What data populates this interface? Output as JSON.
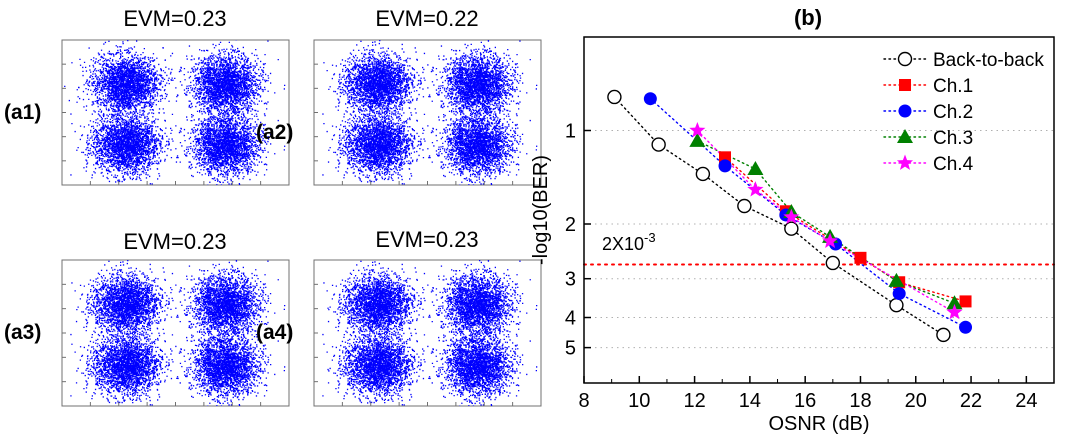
{
  "constellations": [
    {
      "panel_label": "(a1)",
      "title": "EVM=0.23"
    },
    {
      "panel_label": "(a2)",
      "title": "EVM=0.22"
    },
    {
      "panel_label": "(a3)",
      "title": "EVM=0.23"
    },
    {
      "panel_label": "(a4)",
      "title": "EVM=0.23"
    }
  ],
  "colors": {
    "constellation_points": "#0000ff",
    "back_to_back": "#000000",
    "ch1": "#ff0000",
    "ch2": "#0000ff",
    "ch3": "#008000",
    "ch4": "#ff00ff",
    "threshold_line": "#ff0000",
    "grid": "#b0b0b0"
  },
  "chart_data": {
    "type": "scatter",
    "panel_label": "(b)",
    "xlabel": "OSNR (dB)",
    "ylabel": "-log10(BER)",
    "xlim": [
      8,
      25
    ],
    "x_ticks": [
      "8",
      "10",
      "12",
      "14",
      "16",
      "18",
      "20",
      "22",
      "24"
    ],
    "y_ticks": [
      {
        "value": 1,
        "label": "1"
      },
      {
        "value": 2,
        "label": "2"
      },
      {
        "value": 3,
        "label": "3"
      },
      {
        "value": 4,
        "label": "4"
      },
      {
        "value": 5,
        "label": "5"
      }
    ],
    "y_scale": "log, reversed",
    "ylim": [
      0.5,
      6.5
    ],
    "grid": "horizontal dotted",
    "legend_position": "top-right",
    "threshold": {
      "value": 2.7,
      "label_base": "2X10",
      "label_exp": "-3"
    },
    "series": [
      {
        "name": "Back-to-back",
        "marker": "open-circle",
        "color": "#000000",
        "x": [
          9.1,
          10.7,
          12.3,
          13.8,
          15.5,
          17.0,
          19.3,
          21.0
        ],
        "y": [
          0.78,
          1.11,
          1.38,
          1.75,
          2.07,
          2.67,
          3.65,
          4.55
        ]
      },
      {
        "name": "Ch.1",
        "marker": "square",
        "color": "#ff0000",
        "x": [
          13.1,
          15.3,
          18.0,
          19.4,
          21.8
        ],
        "y": [
          1.22,
          1.82,
          2.57,
          3.08,
          3.55
        ]
      },
      {
        "name": "Ch.2",
        "marker": "circle",
        "color": "#0000ff",
        "x": [
          10.4,
          13.1,
          15.3,
          17.1,
          19.4,
          21.8
        ],
        "y": [
          0.79,
          1.3,
          1.87,
          2.32,
          3.35,
          4.3
        ]
      },
      {
        "name": "Ch.3",
        "marker": "triangle",
        "color": "#008000",
        "x": [
          12.1,
          14.2,
          15.5,
          16.9,
          19.3,
          21.4
        ],
        "y": [
          1.08,
          1.33,
          1.83,
          2.2,
          3.05,
          3.6
        ]
      },
      {
        "name": "Ch.4",
        "marker": "star",
        "color": "#ff00ff",
        "x": [
          12.1,
          14.2,
          15.5,
          16.9,
          21.4
        ],
        "y": [
          1.0,
          1.55,
          1.9,
          2.27,
          3.85
        ]
      }
    ]
  }
}
